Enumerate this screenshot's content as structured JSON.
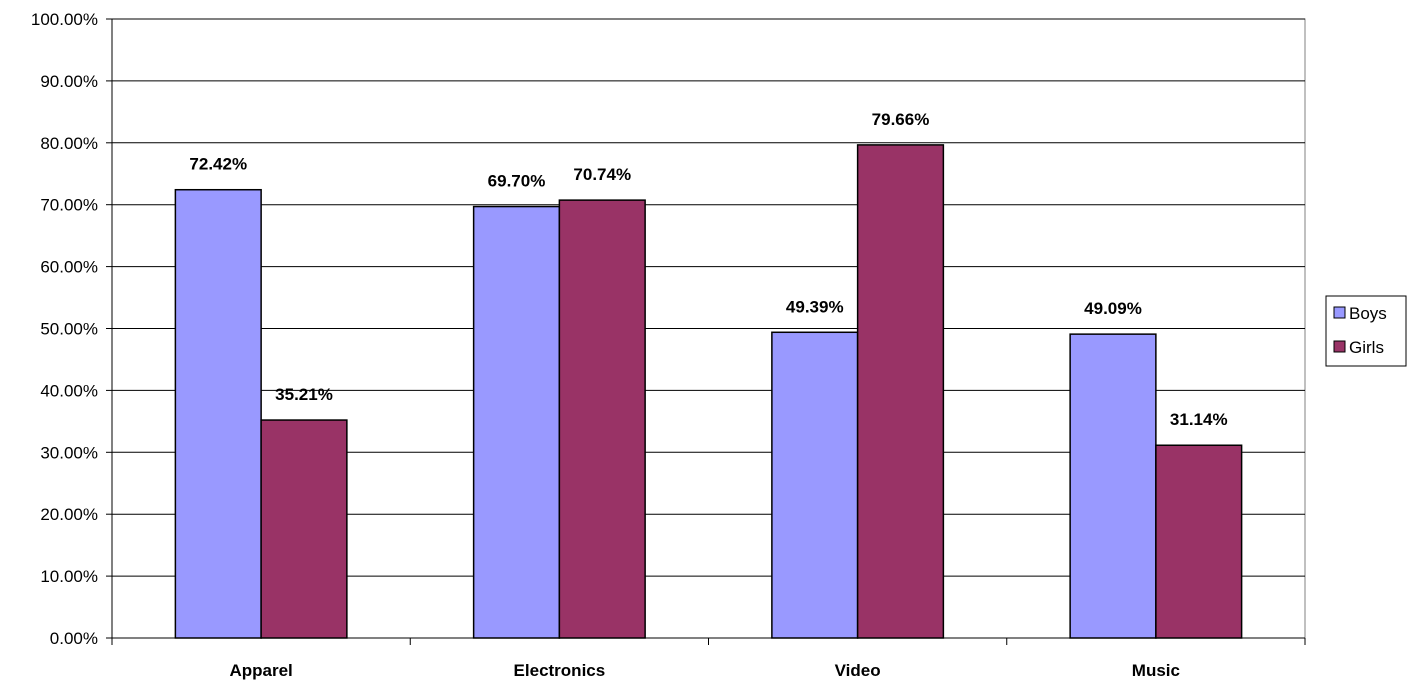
{
  "chart_data": {
    "type": "bar",
    "categories": [
      "Apparel",
      "Electronics",
      "Video",
      "Music"
    ],
    "series": [
      {
        "name": "Boys",
        "values": [
          72.42,
          69.7,
          49.39,
          49.09
        ],
        "labels": [
          "72.42%",
          "69.70%",
          "49.39%",
          "49.09%"
        ],
        "color": "#9999FF"
      },
      {
        "name": "Girls",
        "values": [
          35.21,
          70.74,
          79.66,
          31.14
        ],
        "labels": [
          "35.21%",
          "70.74%",
          "79.66%",
          "31.14%"
        ],
        "color": "#993366"
      }
    ],
    "yticks": [
      "0.00%",
      "10.00%",
      "20.00%",
      "30.00%",
      "40.00%",
      "50.00%",
      "60.00%",
      "70.00%",
      "80.00%",
      "90.00%",
      "100.00%"
    ],
    "ylim": [
      0,
      100
    ],
    "grid": true,
    "legend_position": "right",
    "title": "",
    "xlabel": "",
    "ylabel": ""
  }
}
